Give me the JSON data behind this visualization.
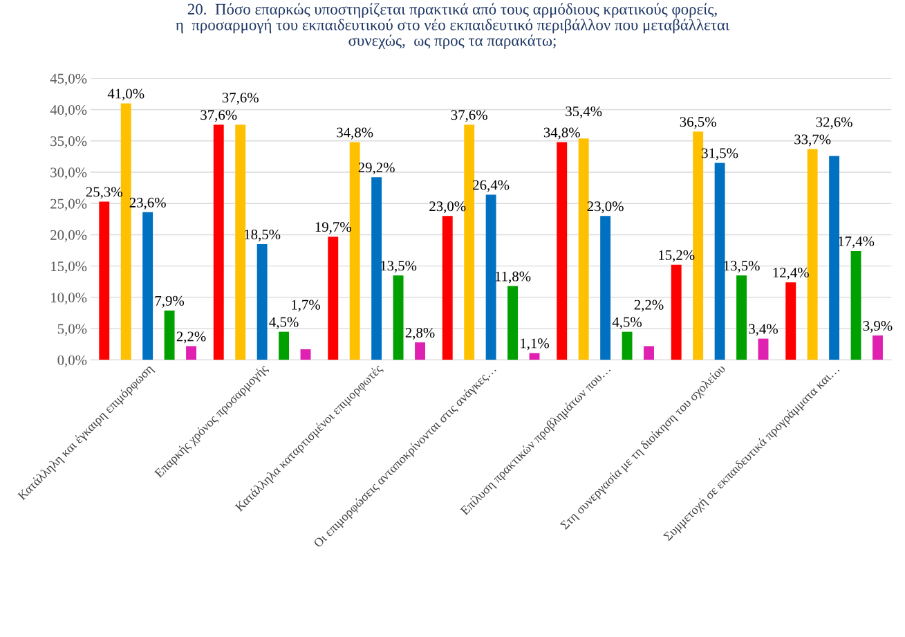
{
  "chart_data": {
    "type": "bar",
    "title": "20.  Πόσο επαρκώς υποστηρίζεται πρακτικά από τους αρμόδιους κρατικούς φορείς,\nη  προσαρμογή του εκπαιδευτικού στο νέο εκπαιδευτικό περιβάλλον που μεταβάλλεται\nσυνεχώς,  ως προς τα παρακάτω;",
    "categories": [
      "Κατάλληλη και έγκαιρη επιμόρφωση",
      "Επαρκής χρόνος προσαρμογής",
      "Κατάλληλα καταρτισμένοι επιμορφωτές",
      "Οι επιμορφώσεις ανταποκρίνονται στις ανάγκες…",
      "Επίλυση πρακτικών προβλημάτων που…",
      "Στη συνεργασία με τη διοίκηση του σχολείου",
      "Συμμετοχή σε εκπαιδευτικά προγράμματα και…"
    ],
    "series": [
      {
        "color": "#ff0000",
        "values": [
          25.3,
          37.6,
          19.7,
          23.0,
          34.8,
          15.2,
          12.4
        ],
        "value_labels": [
          "25,3%",
          "37,6%",
          "19,7%",
          "23,0%",
          "34,8%",
          "15,2%",
          "12,4%"
        ]
      },
      {
        "color": "#ffc000",
        "values": [
          41.0,
          37.6,
          34.8,
          37.6,
          35.4,
          36.5,
          33.7
        ],
        "value_labels": [
          "41,0%",
          "37,6%",
          "34,8%",
          "37,6%",
          "35,4%",
          "36,5%",
          "33,7%"
        ]
      },
      {
        "color": "#0070c0",
        "values": [
          23.6,
          18.5,
          29.2,
          26.4,
          23.0,
          31.5,
          32.6
        ],
        "value_labels": [
          "23,6%",
          "18,5%",
          "29,2%",
          "26,4%",
          "23,0%",
          "31,5%",
          "32,6%"
        ]
      },
      {
        "color": "#00a000",
        "values": [
          7.9,
          4.5,
          13.5,
          11.8,
          4.5,
          13.5,
          17.4
        ],
        "value_labels": [
          "7,9%",
          "4,5%",
          "13,5%",
          "11,8%",
          "4,5%",
          "13,5%",
          "17,4%"
        ]
      },
      {
        "color": "#e020b0",
        "values": [
          2.2,
          1.7,
          2.8,
          1.1,
          2.2,
          3.4,
          3.9
        ],
        "value_labels": [
          "2,2%",
          "1,7%",
          "2,8%",
          "1,1%",
          "2,2%",
          "3,4%",
          "3,9%"
        ]
      }
    ],
    "ylim": [
      0,
      45
    ],
    "yticks": [
      {
        "value": 0,
        "label": "0,0%"
      },
      {
        "value": 5,
        "label": "5,0%"
      },
      {
        "value": 10,
        "label": "10,0%"
      },
      {
        "value": 15,
        "label": "15,0%"
      },
      {
        "value": 20,
        "label": "20,0%"
      },
      {
        "value": 25,
        "label": "25,0%"
      },
      {
        "value": 30,
        "label": "30,0%"
      },
      {
        "value": 35,
        "label": "35,0%"
      },
      {
        "value": 40,
        "label": "40,0%"
      },
      {
        "value": 45,
        "label": "45,0%"
      }
    ],
    "grid": "y"
  }
}
